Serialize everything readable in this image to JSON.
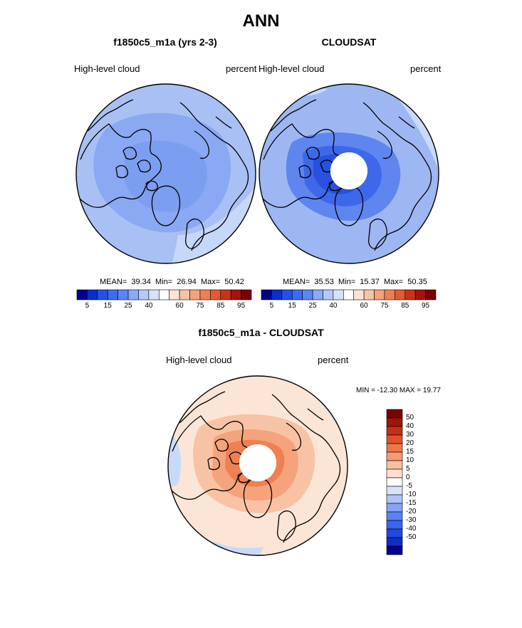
{
  "figure": {
    "title": "ANN",
    "diff_title": "f1850c5_m1a - CLOUDSAT"
  },
  "panels": [
    {
      "title": "f1850c5_m1a (yrs 2-3)",
      "variable": "High-level cloud",
      "units": "percent",
      "stats": {
        "mean_label": "MEAN=",
        "mean": "39.34",
        "min_label": "Min=",
        "min": "26.94",
        "max_label": "Max=",
        "max": "50.42"
      }
    },
    {
      "title": "CLOUDSAT",
      "variable": "High-level cloud",
      "units": "percent",
      "stats": {
        "mean_label": "MEAN=",
        "mean": "35.53",
        "min_label": "Min=",
        "min": "15.37",
        "max_label": "Max=",
        "max": "50.35"
      }
    }
  ],
  "diff_panel": {
    "variable": "High-level cloud",
    "units": "percent",
    "minmax_text": "MIN = -12.30 MAX =  19.77"
  },
  "colors": {
    "abs_scale": [
      "#00008b",
      "#0a2fc9",
      "#2450e6",
      "#3b6cf0",
      "#5a86f2",
      "#8aaaf5",
      "#b3c9f7",
      "#d6e2f9",
      "#ffffff",
      "#fde3d2",
      "#f8c4a6",
      "#f4a37a",
      "#ef7e52",
      "#e35a32",
      "#c93418",
      "#a4140a",
      "#7a0000"
    ],
    "diff_scale": [
      "#00008b",
      "#0d2ec4",
      "#2148e0",
      "#3964ee",
      "#5a82f3",
      "#86a4f6",
      "#aec3f8",
      "#d8e3fa",
      "#ffffff",
      "#fde0cf",
      "#f9c09f",
      "#f49c72",
      "#ee7748",
      "#e1532b",
      "#c52f16",
      "#a01409",
      "#7a0000"
    ],
    "ocean_model": "#a4bdf3",
    "ocean_obs": "#9bb6f2",
    "diff_base": "#fbe3d3"
  },
  "chart_data": [
    {
      "type": "heatmap",
      "projection": "north-polar-stereographic",
      "title": "f1850c5_m1a (yrs 2-3)",
      "field": "High-level cloud",
      "units": "percent",
      "mean": 39.34,
      "min": 26.94,
      "max": 50.42,
      "colorbar": {
        "orientation": "horizontal",
        "tick_labels": [
          "5",
          "15",
          "25",
          "40",
          "60",
          "75",
          "85",
          "95"
        ]
      }
    },
    {
      "type": "heatmap",
      "projection": "north-polar-stereographic",
      "title": "CLOUDSAT",
      "field": "High-level cloud",
      "units": "percent",
      "mean": 35.53,
      "min": 15.37,
      "max": 50.35,
      "colorbar": {
        "orientation": "horizontal",
        "tick_labels": [
          "5",
          "15",
          "25",
          "40",
          "60",
          "75",
          "85",
          "95"
        ]
      }
    },
    {
      "type": "heatmap",
      "projection": "north-polar-stereographic",
      "title": "f1850c5_m1a - CLOUDSAT",
      "field": "High-level cloud",
      "units": "percent",
      "min": -12.3,
      "max": 19.77,
      "colorbar": {
        "orientation": "vertical",
        "tick_labels": [
          "50",
          "40",
          "30",
          "20",
          "15",
          "10",
          "5",
          "0",
          "-5",
          "-10",
          "-15",
          "-20",
          "-30",
          "-40",
          "-50"
        ]
      }
    }
  ]
}
